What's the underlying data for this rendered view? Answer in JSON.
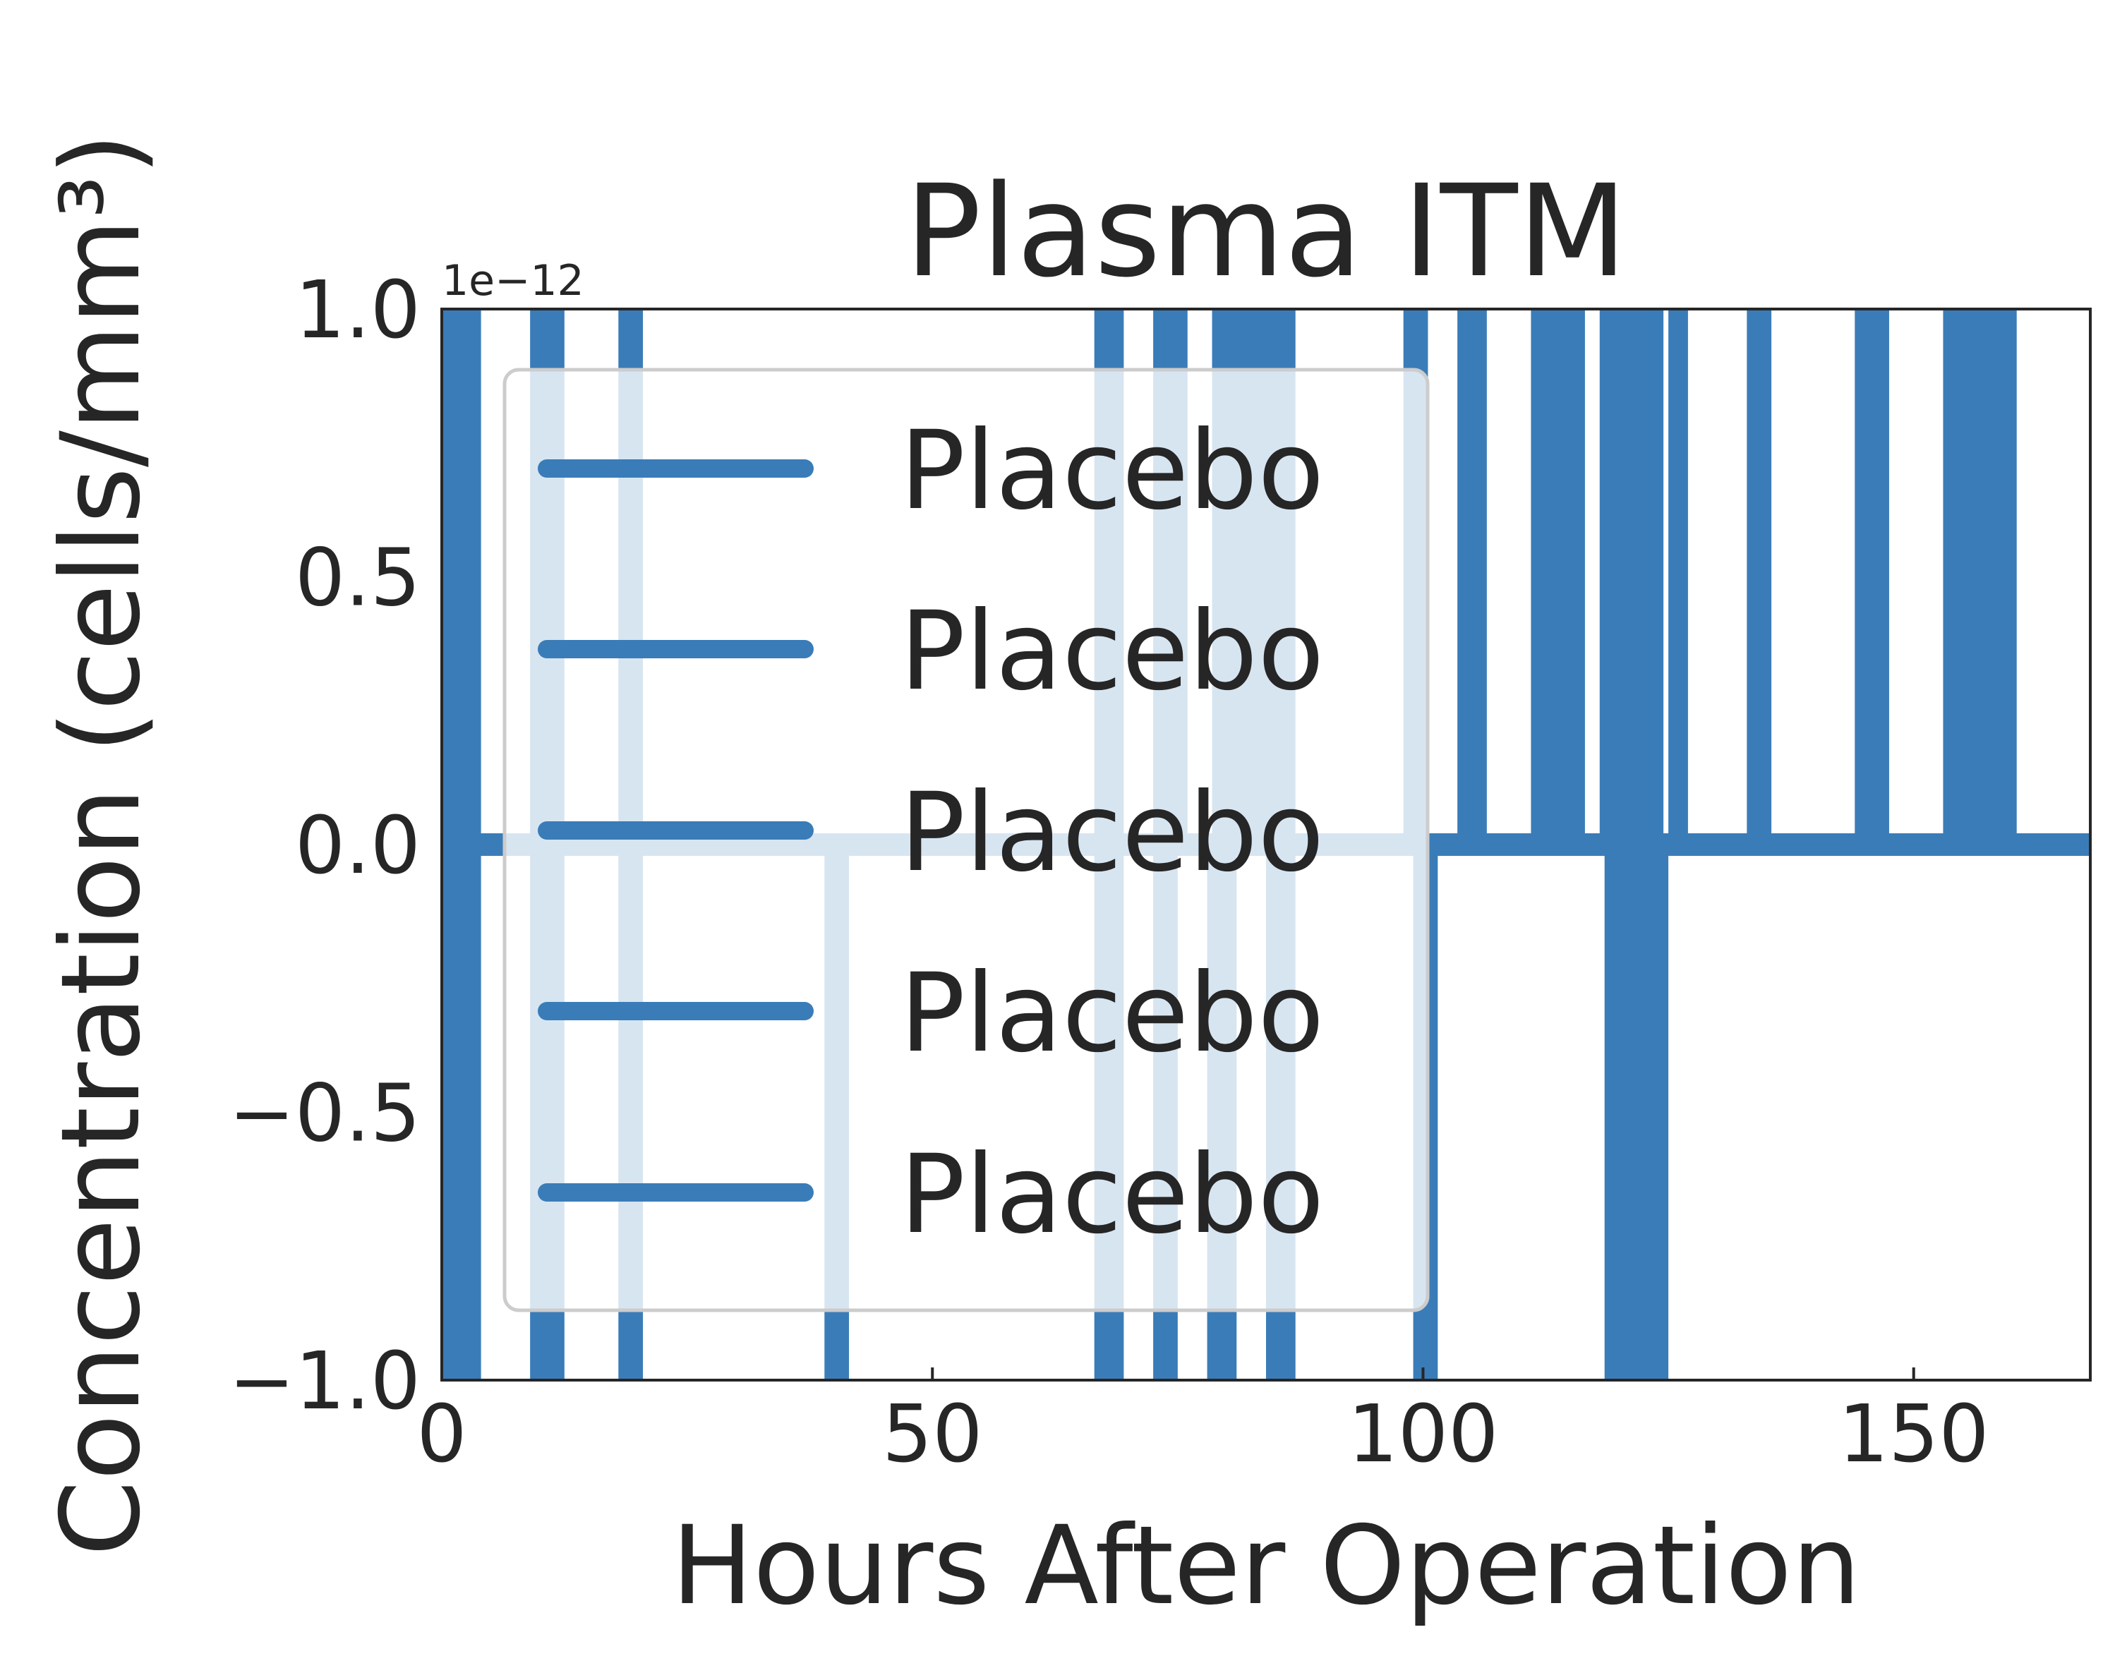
{
  "chart_data": {
    "type": "line",
    "title": "Plasma ITM",
    "xlabel": "Hours After Operation",
    "ylabel": "Concentration (cells/mm³)",
    "y_offset_label": "1e−12",
    "xlim": [
      0,
      168
    ],
    "ylim": [
      -1.0,
      1.0
    ],
    "x_ticks": [
      0,
      50,
      100,
      150
    ],
    "x_tick_labels": [
      "0",
      "50",
      "100",
      "150"
    ],
    "y_ticks": [
      -1.0,
      -0.5,
      0.0,
      0.5,
      1.0
    ],
    "y_tick_labels": [
      "−1.0",
      "−0.5",
      "0.0",
      "0.5",
      "1.0"
    ],
    "grid": false,
    "legend_position": "upper-left",
    "color": "#3a7cb8",
    "series": [
      {
        "name": "Placebo"
      },
      {
        "name": "Placebo"
      },
      {
        "name": "Placebo"
      },
      {
        "name": "Placebo"
      },
      {
        "name": "Placebo"
      }
    ],
    "baseline_y": 0.0,
    "spikes_up": [
      [
        0,
        4
      ],
      [
        9,
        12.5
      ],
      [
        18,
        20.5
      ],
      [
        66.5,
        69.5
      ],
      [
        72.5,
        76
      ],
      [
        78.5,
        87
      ],
      [
        98,
        100.5
      ],
      [
        103.5,
        106.5
      ],
      [
        111,
        116.5
      ],
      [
        118,
        124.5
      ],
      [
        125,
        127
      ],
      [
        133,
        135.5
      ],
      [
        144,
        147.5
      ],
      [
        153,
        160.5
      ]
    ],
    "spikes_down": [
      [
        0,
        4
      ],
      [
        9,
        12.5
      ],
      [
        18,
        20.5
      ],
      [
        39,
        41.5
      ],
      [
        66.5,
        69.5
      ],
      [
        72.5,
        75
      ],
      [
        78,
        81
      ],
      [
        84,
        87
      ],
      [
        99,
        101.5
      ],
      [
        118.5,
        125
      ]
    ]
  }
}
